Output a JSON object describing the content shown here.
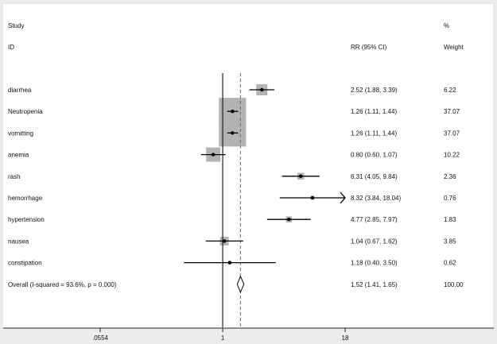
{
  "chart_data": {
    "type": "forest",
    "headers": {
      "study": "Study",
      "id": "ID",
      "effect": "RR (95% CI)",
      "weight_top": "%",
      "weight": "Weight"
    },
    "xscale": "log",
    "xlim": [
      0.0554,
      18
    ],
    "xticks": [
      {
        "value": 0.0554,
        "label": ".0554"
      },
      {
        "value": 1,
        "label": "1"
      },
      {
        "value": 18,
        "label": "18"
      }
    ],
    "null_line": 1,
    "studies": [
      {
        "name": "diarrhea",
        "rr": 2.52,
        "lo": 1.88,
        "hi": 3.39,
        "ci_text": "2.52 (1.88, 3.39)",
        "weight": 6.22,
        "weight_text": "6.22"
      },
      {
        "name": "Neutropenia",
        "rr": 1.26,
        "lo": 1.11,
        "hi": 1.44,
        "ci_text": "1.26 (1.11, 1.44)",
        "weight": 37.07,
        "weight_text": "37.07"
      },
      {
        "name": "vomitting",
        "rr": 1.26,
        "lo": 1.11,
        "hi": 1.44,
        "ci_text": "1.26 (1.11, 1.44)",
        "weight": 37.07,
        "weight_text": "37.07"
      },
      {
        "name": "anemia",
        "rr": 0.8,
        "lo": 0.6,
        "hi": 1.07,
        "ci_text": "0.80 (0.60, 1.07)",
        "weight": 10.22,
        "weight_text": "10.22"
      },
      {
        "name": "rash",
        "rr": 6.31,
        "lo": 4.05,
        "hi": 9.84,
        "ci_text": "6.31 (4.05, 9.84)",
        "weight": 2.36,
        "weight_text": "2.36"
      },
      {
        "name": "hemorrhage",
        "rr": 8.32,
        "lo": 3.84,
        "hi": 18.04,
        "ci_text": "8.32 (3.84, 18.04)",
        "weight": 0.76,
        "weight_text": "0.76"
      },
      {
        "name": "hypertension",
        "rr": 4.77,
        "lo": 2.85,
        "hi": 7.97,
        "ci_text": "4.77 (2.85, 7.97)",
        "weight": 1.83,
        "weight_text": "1.83"
      },
      {
        "name": "nausea",
        "rr": 1.04,
        "lo": 0.67,
        "hi": 1.62,
        "ci_text": "1.04 (0.67, 1.62)",
        "weight": 3.85,
        "weight_text": "3.85"
      },
      {
        "name": "constipation",
        "rr": 1.18,
        "lo": 0.4,
        "hi": 3.5,
        "ci_text": "1.18 (0.40, 3.50)",
        "weight": 0.62,
        "weight_text": "0.62"
      }
    ],
    "overall": {
      "name": "Overall  (I-squared = 93.6%, p = 0.000)",
      "rr": 1.52,
      "lo": 1.41,
      "hi": 1.65,
      "ci_text": "1.52 (1.41, 1.65)",
      "weight_text": "100.00"
    }
  }
}
